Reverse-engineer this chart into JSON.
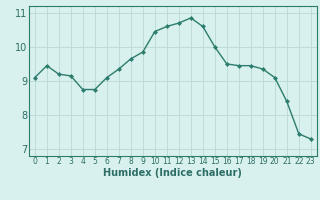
{
  "x": [
    0,
    1,
    2,
    3,
    4,
    5,
    6,
    7,
    8,
    9,
    10,
    11,
    12,
    13,
    14,
    15,
    16,
    17,
    18,
    19,
    20,
    21,
    22,
    23
  ],
  "y": [
    9.1,
    9.45,
    9.2,
    9.15,
    8.75,
    8.75,
    9.1,
    9.35,
    9.65,
    9.85,
    10.45,
    10.6,
    10.7,
    10.85,
    10.6,
    10.0,
    9.5,
    9.45,
    9.45,
    9.35,
    9.1,
    8.4,
    7.45,
    7.3
  ],
  "line_color": "#2d7d6e",
  "marker": "D",
  "marker_size": 2.0,
  "line_width": 1.0,
  "bg_color": "#d8f0ee",
  "grid_color": "#b8d8d4",
  "xlabel": "Humidex (Indice chaleur)",
  "xlabel_fontsize": 7,
  "tick_fontsize": 6.5,
  "ylim": [
    6.8,
    11.2
  ],
  "xlim": [
    -0.5,
    23.5
  ],
  "yticks": [
    7,
    8,
    9,
    10,
    11
  ],
  "xticks": [
    0,
    1,
    2,
    3,
    4,
    5,
    6,
    7,
    8,
    9,
    10,
    11,
    12,
    13,
    14,
    15,
    16,
    17,
    18,
    19,
    20,
    21,
    22,
    23
  ],
  "tick_color": "#2d6e65",
  "spine_color": "#2d7d6e"
}
